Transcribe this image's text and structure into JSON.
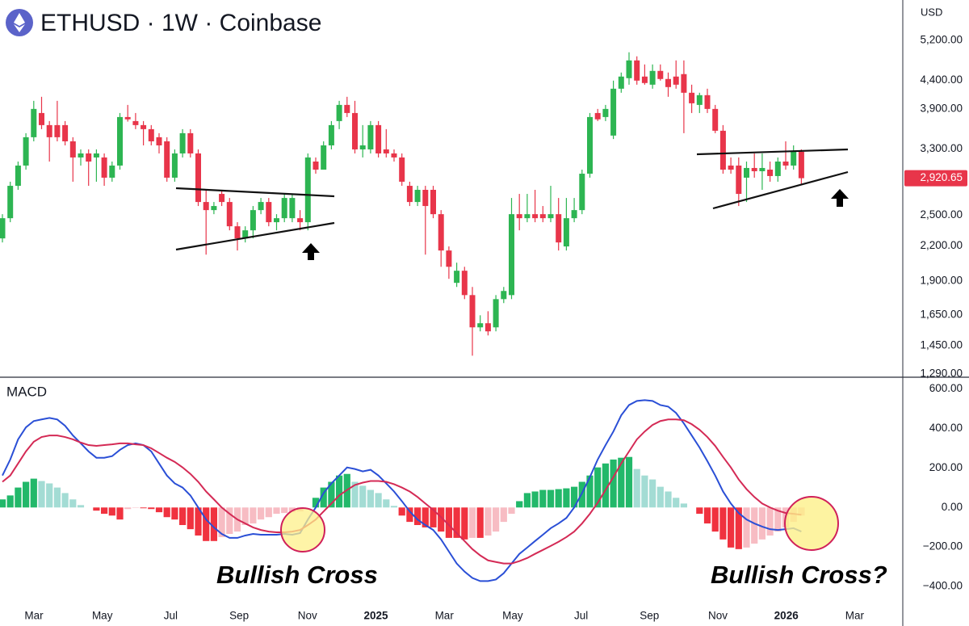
{
  "chart_data": [
    {
      "type": "candlestick",
      "title": "ETHUSD · 1W · Coinbase",
      "currency": "USD",
      "log_scale": true,
      "ylim": [
        1280,
        6150
      ],
      "yticks": [
        {
          "value": 5200,
          "label": "5,200.00"
        },
        {
          "value": 4400,
          "label": "4,400.00"
        },
        {
          "value": 3900,
          "label": "3,900.00"
        },
        {
          "value": 3300,
          "label": "3,300.00"
        },
        {
          "value": 2500,
          "label": "2,500.00"
        },
        {
          "value": 2200,
          "label": "2,200.00"
        },
        {
          "value": 1900,
          "label": "1,900.00"
        },
        {
          "value": 1650,
          "label": "1,650.00"
        },
        {
          "value": 1450,
          "label": "1,450.00"
        },
        {
          "value": 1290,
          "label": "1,290.00"
        }
      ],
      "up_color": "#2db552",
      "down_color": "#e8354a",
      "last_price": {
        "value": 2920.65,
        "label": "2,920.65"
      },
      "ohlc": [
        [
          2271,
          2513,
          2233,
          2471
        ],
        [
          2471,
          2878,
          2430,
          2829
        ],
        [
          2829,
          3131,
          2782,
          3079
        ],
        [
          3079,
          3525,
          3027,
          3466
        ],
        [
          3466,
          4035,
          3407,
          3901
        ],
        [
          3835,
          4104,
          3585,
          3646
        ],
        [
          3646,
          3708,
          3131,
          3466
        ],
        [
          3646,
          4035,
          3407,
          3466
        ],
        [
          3646,
          3708,
          3350,
          3407
        ],
        [
          3407,
          3466,
          2878,
          3185
        ],
        [
          3185,
          3294,
          3079,
          3239
        ],
        [
          3239,
          3294,
          2829,
          3131
        ],
        [
          3185,
          3294,
          2878,
          3239
        ],
        [
          3185,
          3239,
          2829,
          2927
        ],
        [
          2927,
          3131,
          2878,
          3079
        ],
        [
          3079,
          3835,
          3027,
          3771
        ],
        [
          3771,
          3967,
          3700,
          3735
        ],
        [
          3708,
          3835,
          3585,
          3646
        ],
        [
          3646,
          3708,
          3350,
          3585
        ],
        [
          3585,
          3646,
          3350,
          3407
        ],
        [
          3466,
          3525,
          3239,
          3350
        ],
        [
          3407,
          3466,
          2878,
          2927
        ],
        [
          2927,
          3294,
          2878,
          3239
        ],
        [
          3239,
          3585,
          3185,
          3525
        ],
        [
          3525,
          3585,
          3185,
          3239
        ],
        [
          3239,
          3294,
          2600,
          2644
        ],
        [
          2644,
          2782,
          2122,
          2556
        ],
        [
          2556,
          2644,
          2513,
          2600
        ],
        [
          2735,
          2782,
          2600,
          2644
        ],
        [
          2644,
          2689,
          2349,
          2389
        ],
        [
          2389,
          2430,
          2159,
          2271
        ],
        [
          2271,
          2389,
          2233,
          2349
        ],
        [
          2349,
          2600,
          2271,
          2556
        ],
        [
          2556,
          2689,
          2513,
          2644
        ],
        [
          2644,
          2689,
          2389,
          2430
        ],
        [
          2430,
          2513,
          2349,
          2471
        ],
        [
          2471,
          2735,
          2430,
          2689
        ],
        [
          2471,
          2735,
          2430,
          2689
        ],
        [
          2471,
          2556,
          2349,
          2430
        ],
        [
          2430,
          3239,
          2349,
          3185
        ],
        [
          3131,
          3185,
          2976,
          3027
        ],
        [
          3027,
          3407,
          3027,
          3350
        ],
        [
          3350,
          3708,
          3294,
          3646
        ],
        [
          3708,
          4035,
          3585,
          3967
        ],
        [
          3967,
          4104,
          3771,
          3835
        ],
        [
          3835,
          4035,
          3239,
          3294
        ],
        [
          3294,
          3646,
          3185,
          3350
        ],
        [
          3294,
          3708,
          3239,
          3646
        ],
        [
          3646,
          3708,
          3185,
          3239
        ],
        [
          3294,
          3585,
          3185,
          3239
        ],
        [
          3239,
          3294,
          3131,
          3185
        ],
        [
          3185,
          3239,
          2829,
          2878
        ],
        [
          2829,
          2878,
          2600,
          2644
        ],
        [
          2644,
          2829,
          2600,
          2782
        ],
        [
          2782,
          2829,
          2122,
          2600
        ],
        [
          2782,
          2829,
          2471,
          2513
        ],
        [
          2513,
          2556,
          2017,
          2159
        ],
        [
          2159,
          2196,
          1918,
          2017
        ],
        [
          1886,
          2052,
          1854,
          1984
        ],
        [
          1984,
          2017,
          1762,
          1792
        ],
        [
          1792,
          1854,
          1391,
          1566
        ],
        [
          1566,
          1647,
          1540,
          1593
        ],
        [
          1593,
          1675,
          1514,
          1540
        ],
        [
          1566,
          1792,
          1540,
          1762
        ],
        [
          1762,
          1854,
          1733,
          1823
        ],
        [
          1792,
          2689,
          1762,
          2513
        ],
        [
          2513,
          2735,
          2349,
          2471
        ],
        [
          2471,
          2735,
          2430,
          2513
        ],
        [
          2513,
          2782,
          2430,
          2471
        ],
        [
          2513,
          2600,
          2430,
          2471
        ],
        [
          2471,
          2829,
          2430,
          2513
        ],
        [
          2513,
          2689,
          2159,
          2233
        ],
        [
          2196,
          2689,
          2159,
          2471
        ],
        [
          2471,
          2689,
          2430,
          2556
        ],
        [
          2556,
          3027,
          2513,
          2976
        ],
        [
          2976,
          3835,
          2927,
          3771
        ],
        [
          3835,
          3901,
          3708,
          3735
        ],
        [
          3771,
          3967,
          3708,
          3901
        ],
        [
          3490,
          4391,
          3440,
          4245
        ],
        [
          4245,
          4542,
          4174,
          4466
        ],
        [
          4436,
          4943,
          4317,
          4778
        ],
        [
          4778,
          4860,
          4317,
          4391
        ],
        [
          4466,
          4698,
          4317,
          4347
        ],
        [
          4317,
          4698,
          4245,
          4573
        ],
        [
          4573,
          4698,
          4391,
          4421
        ],
        [
          4421,
          4542,
          4104,
          4274
        ],
        [
          4466,
          4778,
          4245,
          4317
        ],
        [
          4512,
          4778,
          3525,
          4174
        ],
        [
          4174,
          4317,
          3835,
          3994
        ],
        [
          3967,
          4174,
          3835,
          4132
        ],
        [
          4132,
          4245,
          3835,
          3901
        ],
        [
          3901,
          3967,
          3525,
          3561
        ],
        [
          3561,
          3646,
          2976,
          3027
        ],
        [
          3079,
          3185,
          2976,
          3027
        ],
        [
          3079,
          3185,
          2600,
          2735
        ],
        [
          2927,
          3131,
          2644,
          3048
        ],
        [
          3048,
          3239,
          2927,
          3007
        ],
        [
          3007,
          3239,
          2782,
          3048
        ],
        [
          3027,
          3131,
          2878,
          2947
        ],
        [
          2947,
          3185,
          2878,
          3131
        ],
        [
          3131,
          3407,
          3027,
          3079
        ],
        [
          3079,
          3350,
          3027,
          3261
        ],
        [
          3261,
          3294,
          2849,
          2920.65
        ]
      ]
    },
    {
      "type": "macd",
      "title": "MACD",
      "ylim": [
        -490,
        660
      ],
      "yticks": [
        {
          "value": 600,
          "label": "600.00"
        },
        {
          "value": 400,
          "label": "400.00"
        },
        {
          "value": 200,
          "label": "200.00"
        },
        {
          "value": 0,
          "label": "0.00"
        },
        {
          "value": -200,
          "label": "−200.00"
        },
        {
          "value": -400,
          "label": "−400.00"
        }
      ],
      "series": [
        {
          "color": "#2a4fd6",
          "values": [
            162,
            243,
            345,
            406,
            438,
            446,
            454,
            446,
            414,
            365,
            325,
            284,
            252,
            252,
            260,
            292,
            316,
            325,
            316,
            284,
            223,
            162,
            122,
            101,
            61,
            0,
            -61,
            -101,
            -134,
            -154,
            -154,
            -142,
            -134,
            -138,
            -138,
            -138,
            -134,
            -138,
            -130,
            -61,
            0,
            73,
            122,
            162,
            203,
            195,
            183,
            191,
            162,
            122,
            81,
            32,
            -20,
            -61,
            -89,
            -114,
            -162,
            -223,
            -284,
            -325,
            -357,
            -373,
            -373,
            -365,
            -333,
            -284,
            -235,
            -203,
            -170,
            -138,
            -105,
            -81,
            -53,
            0,
            73,
            154,
            243,
            316,
            385,
            467,
            519,
            540,
            544,
            540,
            519,
            511,
            479,
            426,
            365,
            304,
            235,
            162,
            81,
            20,
            -28,
            -61,
            -81,
            -97,
            -110,
            -114,
            -110,
            -105,
            -122
          ]
        },
        {
          "color": "#d42a55",
          "values": [
            130,
            162,
            223,
            284,
            333,
            357,
            365,
            365,
            357,
            345,
            329,
            316,
            312,
            316,
            320,
            325,
            325,
            320,
            316,
            300,
            276,
            252,
            231,
            203,
            170,
            130,
            81,
            41,
            0,
            -32,
            -61,
            -81,
            -101,
            -114,
            -122,
            -126,
            -126,
            -122,
            -114,
            -89,
            -61,
            -20,
            20,
            61,
            89,
            114,
            126,
            134,
            134,
            130,
            118,
            101,
            81,
            53,
            20,
            -12,
            -49,
            -89,
            -130,
            -170,
            -211,
            -243,
            -268,
            -276,
            -284,
            -284,
            -272,
            -256,
            -235,
            -215,
            -195,
            -174,
            -150,
            -122,
            -81,
            -32,
            24,
            89,
            154,
            223,
            284,
            345,
            385,
            418,
            438,
            446,
            446,
            442,
            422,
            394,
            357,
            312,
            256,
            203,
            142,
            93,
            53,
            20,
            0,
            -16,
            -28,
            -32,
            -37
          ]
        }
      ],
      "histogram": [
        41,
        61,
        101,
        130,
        146,
        134,
        122,
        101,
        73,
        41,
        12,
        0,
        -16,
        -32,
        -41,
        -61,
        -8,
        -2,
        -4,
        -8,
        -24,
        -49,
        -61,
        -89,
        -110,
        -142,
        -170,
        -170,
        -150,
        -134,
        -122,
        -89,
        -81,
        -61,
        -49,
        -32,
        -28,
        -24,
        -20,
        0,
        49,
        101,
        130,
        162,
        170,
        130,
        110,
        89,
        73,
        41,
        8,
        -41,
        -73,
        -89,
        -101,
        -101,
        -122,
        -154,
        -154,
        -162,
        -154,
        -154,
        -142,
        -122,
        -73,
        -32,
        32,
        73,
        81,
        89,
        89,
        93,
        97,
        105,
        130,
        162,
        203,
        223,
        243,
        252,
        256,
        195,
        162,
        142,
        105,
        81,
        49,
        20,
        0,
        -32,
        -81,
        -122,
        -162,
        -203,
        -211,
        -203,
        -183,
        -162,
        -142,
        -122,
        -101,
        -73,
        -41
      ],
      "histogram_colors": {
        "up_rising": "#22b86a",
        "up_falling": "#a3dcd4",
        "down_falling": "#f0323f",
        "down_rising": "#f7bcc3"
      },
      "x_labels": [
        "Mar",
        "May",
        "Jul",
        "Sep",
        "Nov",
        "2025",
        "Mar",
        "May",
        "Jul",
        "Sep",
        "Nov",
        "2026",
        "Mar"
      ],
      "annotations": [
        "Bullish Cross",
        "Bullish Cross?"
      ]
    }
  ]
}
